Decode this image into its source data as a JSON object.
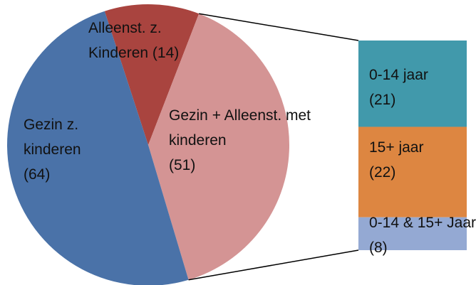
{
  "chart_data": {
    "type": "pie-of-bar",
    "categories": [
      "Alleenst. z. Kinderen",
      "Gezin + Alleenst. met kinderen",
      "Gezin z. kinderen"
    ],
    "values": [
      14,
      51,
      64
    ],
    "value_labels": [
      "(14)",
      "(51)",
      "(64)"
    ],
    "colors": [
      "#a9443f",
      "#d49494",
      "#4a72a8"
    ],
    "bar": {
      "categories": [
        "0-14 jaar",
        "15+ jaar",
        "0-14 & 15+ Jaar"
      ],
      "values": [
        21,
        22,
        8
      ],
      "value_labels": [
        "(21)",
        "(22)",
        "(8)"
      ],
      "colors": [
        "#4199ab",
        "#dd8641",
        "#94a9d3"
      ]
    }
  }
}
